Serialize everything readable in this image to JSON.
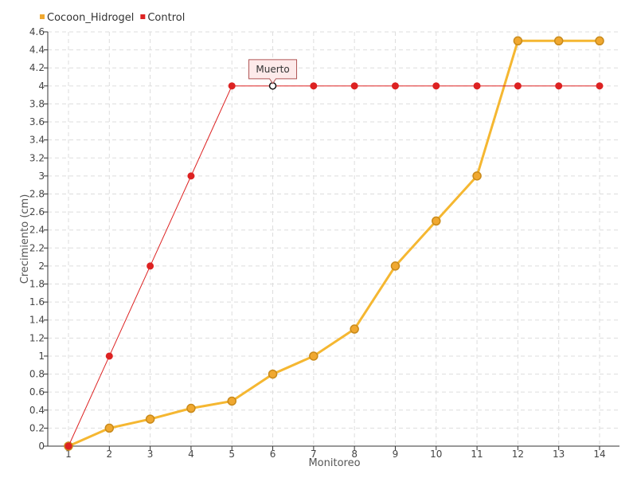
{
  "chart_data": {
    "type": "line",
    "xlabel": "Monitoreo",
    "ylabel": "Crecimiento (cm)",
    "x": [
      1,
      2,
      3,
      4,
      5,
      6,
      7,
      8,
      9,
      10,
      11,
      12,
      13,
      14
    ],
    "x_tick_labels": [
      "1",
      "2",
      "3",
      "4",
      "5",
      "6",
      "7",
      "8",
      "9",
      "10",
      "11",
      "12",
      "13",
      "14"
    ],
    "ylim": [
      0,
      4.6
    ],
    "y_ticks": [
      0,
      0.2,
      0.4,
      0.6,
      0.8,
      1,
      1.2,
      1.4,
      1.6,
      1.8,
      2,
      2.2,
      2.4,
      2.6,
      2.8,
      3,
      3.2,
      3.4,
      3.6,
      3.8,
      4,
      4.2,
      4.4,
      4.6
    ],
    "y_tick_labels": [
      "0",
      "0.2",
      "0.4",
      "0.6",
      "0.8",
      "1",
      "1.2",
      "1.4",
      "1.6",
      "1.8",
      "2",
      "2.2",
      "2.4",
      "2.6",
      "2.8",
      "3",
      "3.2",
      "3.4",
      "3.6",
      "3.8",
      "4",
      "4.2",
      "4.4",
      "4.6"
    ],
    "grid": true,
    "legend_position": "top-left",
    "series": [
      {
        "name": "Cocoon_Hidrogel",
        "color": "#f5b731",
        "marker_fill": "#f0a830",
        "marker_stroke": "#c98a1a",
        "values": [
          0,
          0.2,
          0.3,
          0.42,
          0.5,
          0.8,
          1.0,
          1.3,
          2.0,
          2.5,
          3.0,
          4.5,
          4.5,
          4.5
        ]
      },
      {
        "name": "Control",
        "color": "#dd2222",
        "marker_fill": "#dd2222",
        "marker_stroke": "#dd2222",
        "values": [
          0,
          1,
          2,
          3,
          4,
          4,
          4,
          4,
          4,
          4,
          4,
          4,
          4,
          4
        ]
      }
    ],
    "annotations": [
      {
        "text": "Muerto",
        "series": "Control",
        "x": 6,
        "y": 4
      }
    ]
  }
}
